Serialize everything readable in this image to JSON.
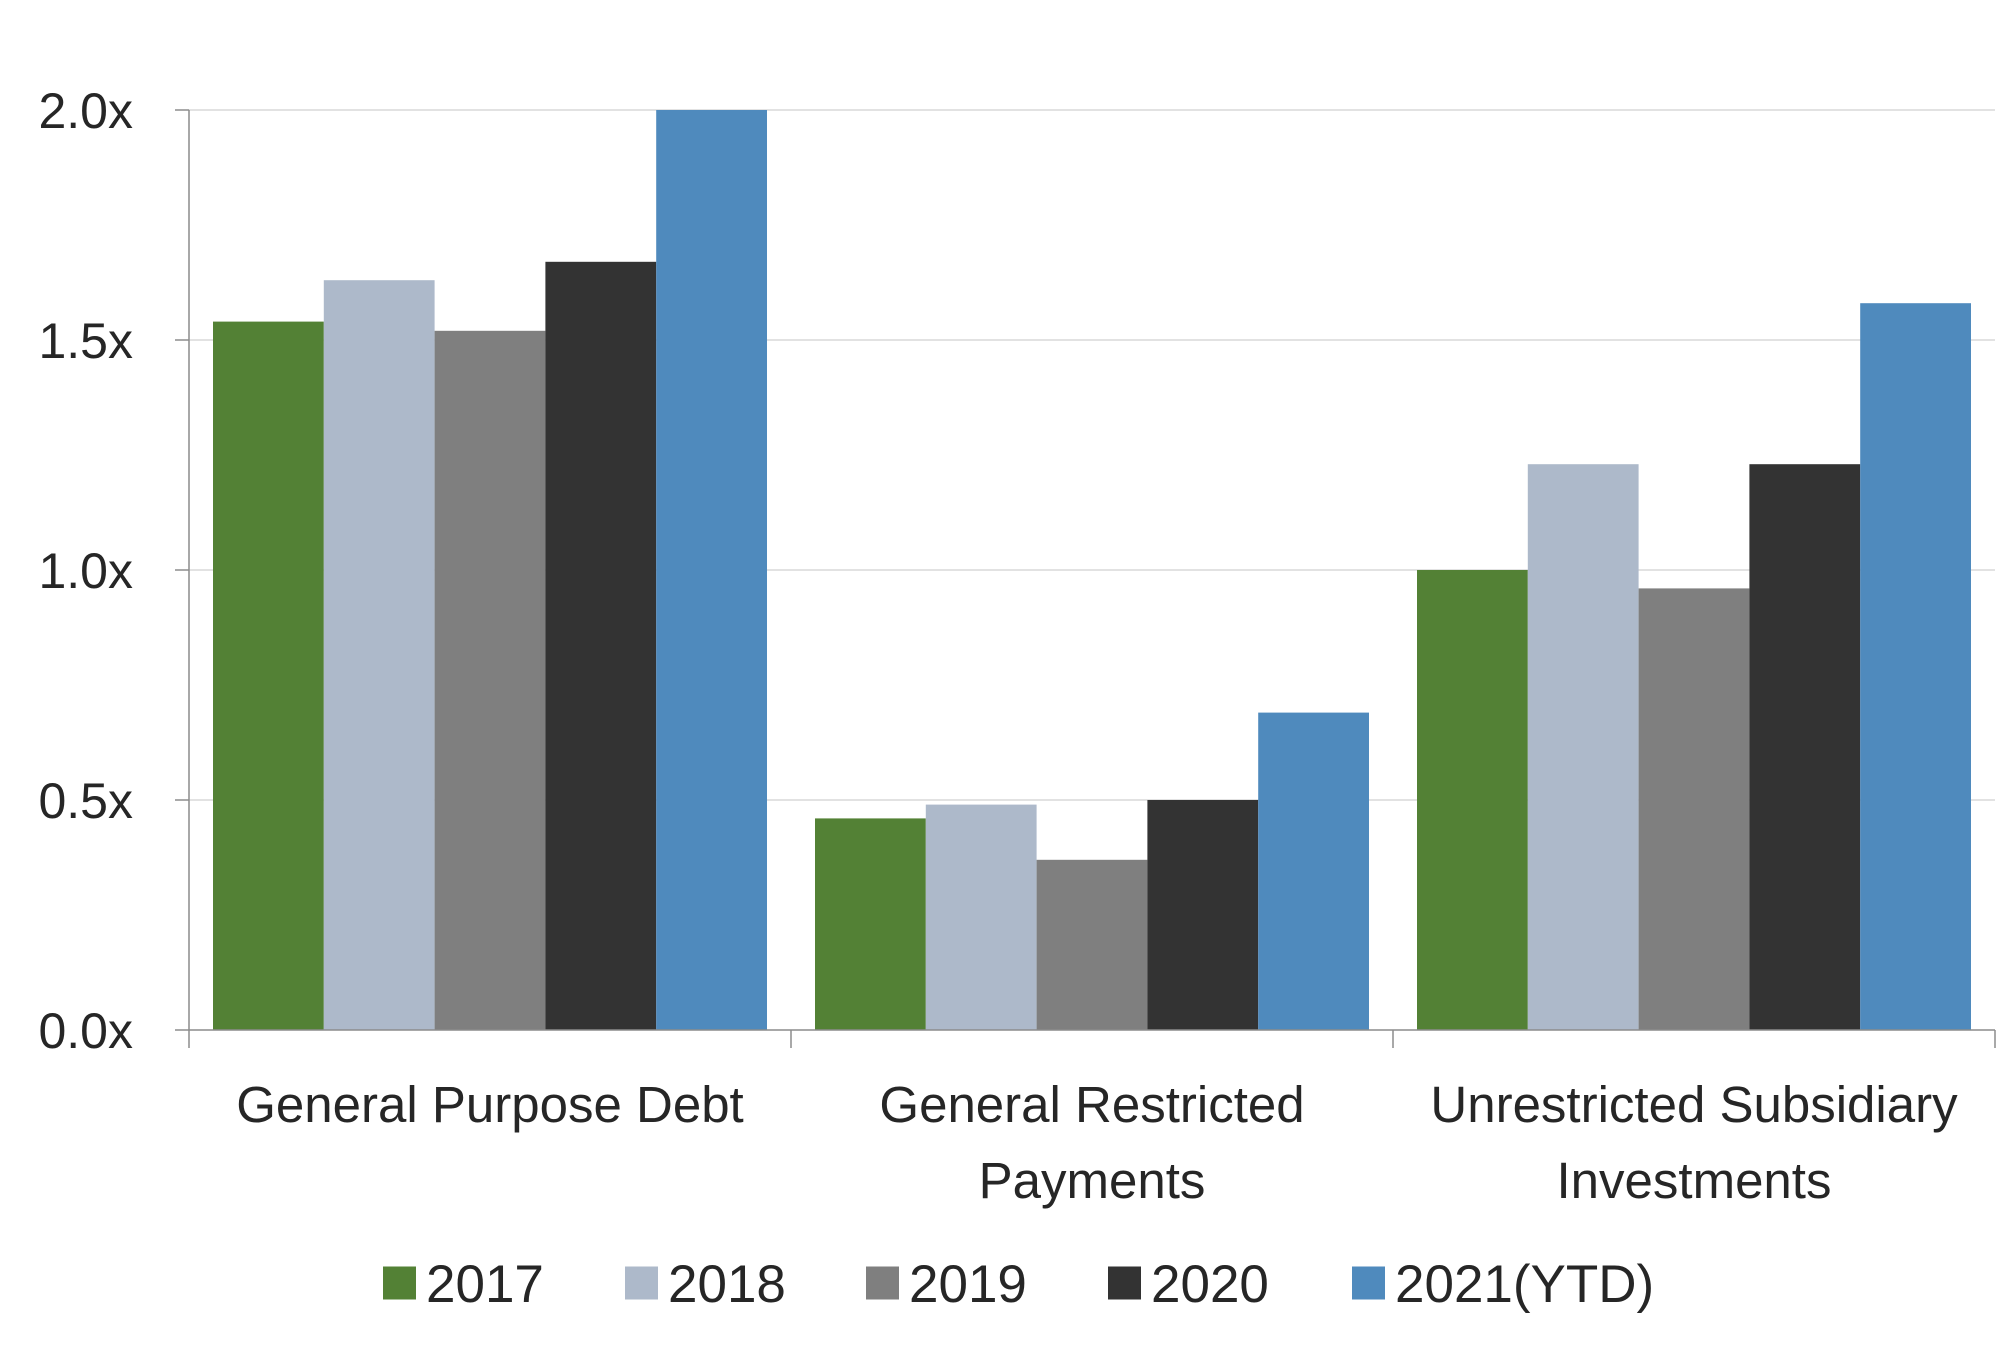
{
  "chart_data": {
    "type": "bar",
    "categories": [
      [
        "General Purpose Debt"
      ],
      [
        "General Restricted",
        "Payments"
      ],
      [
        "Unrestricted Subsidiary",
        "Investments"
      ]
    ],
    "series": [
      {
        "name": "2017",
        "color": "#538135",
        "values": [
          1.54,
          0.46,
          1.0
        ]
      },
      {
        "name": "2018",
        "color": "#adb9ca",
        "values": [
          1.63,
          0.49,
          1.23
        ]
      },
      {
        "name": "2019",
        "color": "#7f7f7f",
        "values": [
          1.52,
          0.37,
          0.96
        ]
      },
      {
        "name": "2020",
        "color": "#333333",
        "values": [
          1.67,
          0.5,
          1.23
        ]
      },
      {
        "name": "2021(YTD)",
        "color": "#4f8abd",
        "values": [
          2.0,
          0.69,
          1.58
        ]
      }
    ],
    "yticks": [
      0.0,
      0.5,
      1.0,
      1.5,
      2.0
    ],
    "ytick_labels": [
      "0.0x",
      "0.5x",
      "1.0x",
      "1.5x",
      "2.0x"
    ],
    "ylim": [
      0,
      2.0
    ],
    "xlabel": "",
    "ylabel": "",
    "grid": true,
    "legend_position": "bottom",
    "colors": {
      "gridline": "#d9d9d9",
      "axis": "#8c8c8c",
      "text": "#262626"
    }
  }
}
